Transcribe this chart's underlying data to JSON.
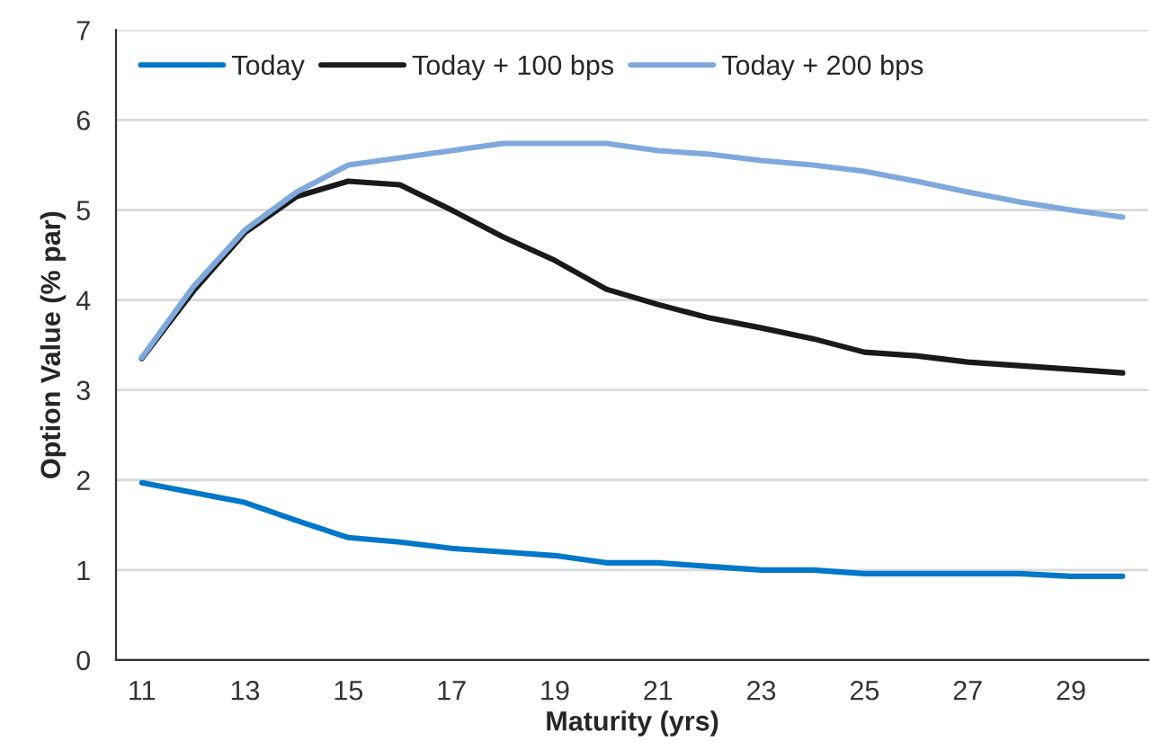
{
  "chart_data": {
    "type": "line",
    "xlabel": "Maturity (yrs)",
    "ylabel": "Option Value (% par)",
    "categories": [
      "11",
      null,
      "13",
      null,
      "15",
      null,
      "17",
      null,
      "19",
      null,
      "21",
      null,
      "23",
      null,
      "25",
      null,
      "27",
      null,
      "29",
      null
    ],
    "series": [
      {
        "name": "Today",
        "color": "#0077c8",
        "values": [
          1.97,
          1.86,
          1.75,
          1.55,
          1.36,
          1.31,
          1.24,
          1.2,
          1.16,
          1.08,
          1.08,
          1.04,
          1.0,
          1.0,
          0.96,
          0.96,
          0.96,
          0.96,
          0.93,
          0.93
        ]
      },
      {
        "name": "Today + 100 bps",
        "color": "#1a1a1a",
        "values": [
          3.35,
          4.1,
          4.75,
          5.15,
          5.32,
          5.28,
          5.0,
          4.7,
          4.44,
          4.12,
          3.95,
          3.8,
          3.69,
          3.57,
          3.42,
          3.38,
          3.31,
          3.27,
          3.23,
          3.19
        ]
      },
      {
        "name": "Today + 200 bps",
        "color": "#7fa9dc",
        "values": [
          3.36,
          4.15,
          4.78,
          5.2,
          5.5,
          5.58,
          5.66,
          5.74,
          5.74,
          5.74,
          5.66,
          5.62,
          5.55,
          5.5,
          5.43,
          5.32,
          5.2,
          5.09,
          5.0,
          4.92
        ]
      }
    ],
    "ylim": [
      0,
      7
    ],
    "yticks": [
      0,
      1,
      2,
      3,
      4,
      5,
      6,
      7
    ],
    "grid": "y",
    "legend": "top left",
    "marker": "none",
    "line_style": "solid"
  }
}
